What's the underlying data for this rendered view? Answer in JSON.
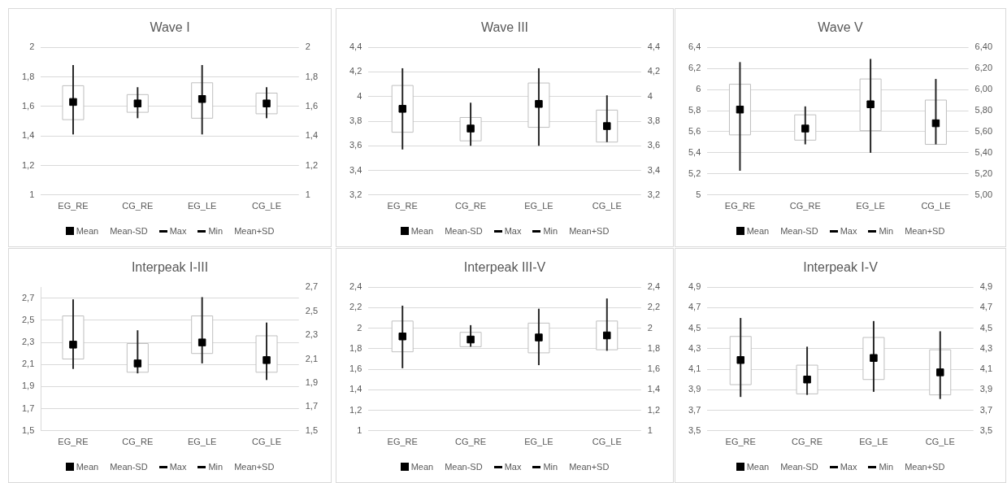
{
  "chart_data": [
    {
      "type": "candlestick",
      "title": "Wave I",
      "categories": [
        "EG_RE",
        "CG_RE",
        "EG_LE",
        "CG_LE"
      ],
      "ylim": [
        1,
        2
      ],
      "yticks": [
        1,
        {
          "value": 1.2,
          "label": "1,2"
        },
        {
          "value": 1.4,
          "label": "1,4"
        },
        {
          "value": 1.6,
          "label": "1,6"
        },
        {
          "value": 1.8,
          "label": "1,8"
        },
        2
      ],
      "y2lim": [
        1,
        2
      ],
      "y2ticks": [
        1,
        {
          "value": 1.2,
          "label": "1,2"
        },
        {
          "value": 1.4,
          "label": "1,4"
        },
        {
          "value": 1.6,
          "label": "1,6"
        },
        {
          "value": 1.8,
          "label": "1,8"
        },
        2
      ],
      "grid": "y",
      "legend": "bottom",
      "ohlc": [
        [
          1.51,
          1.88,
          1.41,
          1.74
        ],
        [
          1.56,
          1.73,
          1.52,
          1.68
        ],
        [
          1.52,
          1.88,
          1.41,
          1.76
        ],
        [
          1.55,
          1.73,
          1.52,
          1.69
        ]
      ],
      "annotations": [
        "Mean-SD",
        "Max",
        "Min",
        "Mean+SD"
      ],
      "series": [
        {
          "name": "Mean",
          "type": "scatter",
          "color": "#000000",
          "marker": "square",
          "values": [
            1.63,
            1.62,
            1.65,
            1.62
          ]
        }
      ]
    },
    {
      "type": "candlestick",
      "title": "Wave III",
      "categories": [
        "EG_RE",
        "CG_RE",
        "EG_LE",
        "CG_LE"
      ],
      "ylim": [
        3.2,
        4.4
      ],
      "yticks": [
        {
          "value": 3.2,
          "label": "3,2"
        },
        {
          "value": 3.4,
          "label": "3,4"
        },
        {
          "value": 3.6,
          "label": "3,6"
        },
        {
          "value": 3.8,
          "label": "3,8"
        },
        4,
        {
          "value": 4.2,
          "label": "4,2"
        },
        {
          "value": 4.4,
          "label": "4,4"
        }
      ],
      "y2lim": [
        3.2,
        4.4
      ],
      "y2ticks": [
        {
          "value": 3.2,
          "label": "3,2"
        },
        {
          "value": 3.4,
          "label": "3,4"
        },
        {
          "value": 3.6,
          "label": "3,6"
        },
        {
          "value": 3.8,
          "label": "3,8"
        },
        4,
        {
          "value": 4.2,
          "label": "4,2"
        },
        {
          "value": 4.4,
          "label": "4,4"
        }
      ],
      "grid": "y",
      "legend": "bottom",
      "ohlc": [
        [
          3.71,
          4.23,
          3.57,
          4.09
        ],
        [
          3.64,
          3.95,
          3.6,
          3.83
        ],
        [
          3.75,
          4.23,
          3.6,
          4.11
        ],
        [
          3.63,
          4.01,
          3.63,
          3.89
        ]
      ],
      "annotations": [
        "Mean-SD",
        "Max",
        "Min",
        "Mean+SD"
      ],
      "series": [
        {
          "name": "Mean",
          "type": "scatter",
          "color": "#000000",
          "marker": "square",
          "values": [
            3.9,
            3.74,
            3.94,
            3.76
          ]
        }
      ]
    },
    {
      "type": "candlestick",
      "title": "Wave V",
      "categories": [
        "EG_RE",
        "CG_RE",
        "EG_LE",
        "CG_LE"
      ],
      "ylim": [
        5,
        6.4
      ],
      "yticks": [
        5,
        {
          "value": 5.2,
          "label": "5,2"
        },
        {
          "value": 5.4,
          "label": "5,4"
        },
        {
          "value": 5.6,
          "label": "5,6"
        },
        {
          "value": 5.8,
          "label": "5,8"
        },
        6,
        {
          "value": 6.2,
          "label": "6,2"
        },
        {
          "value": 6.4,
          "label": "6,4"
        }
      ],
      "y2lim": [
        5,
        6.4
      ],
      "y2ticks": [
        {
          "value": 5,
          "label": "5,00"
        },
        {
          "value": 5.2,
          "label": "5,20"
        },
        {
          "value": 5.4,
          "label": "5,40"
        },
        {
          "value": 5.6,
          "label": "5,60"
        },
        {
          "value": 5.8,
          "label": "5,80"
        },
        {
          "value": 6,
          "label": "6,00"
        },
        {
          "value": 6.2,
          "label": "6,20"
        },
        {
          "value": 6.4,
          "label": "6,40"
        }
      ],
      "grid": "y",
      "legend": "bottom",
      "ohlc": [
        [
          5.57,
          6.26,
          5.23,
          6.05
        ],
        [
          5.52,
          5.84,
          5.48,
          5.76
        ],
        [
          5.61,
          6.29,
          5.4,
          6.1
        ],
        [
          5.48,
          6.1,
          5.48,
          5.9
        ]
      ],
      "annotations": [
        "Mean-SD",
        "Max",
        "Min",
        "Mean+SD"
      ],
      "series": [
        {
          "name": "Mean",
          "type": "scatter",
          "color": "#000000",
          "marker": "square",
          "values": [
            5.81,
            5.63,
            5.86,
            5.68
          ]
        }
      ]
    },
    {
      "type": "candlestick",
      "title": "Interpeak I-III",
      "categories": [
        "EG_RE",
        "CG_RE",
        "EG_LE",
        "CG_LE"
      ],
      "ylim": [
        1.5,
        2.8
      ],
      "yticks": [
        {
          "value": 1.5,
          "label": "1,5"
        },
        {
          "value": 1.7,
          "label": "1,7"
        },
        {
          "value": 1.9,
          "label": "1,9"
        },
        {
          "value": 2.1,
          "label": "2,1"
        },
        {
          "value": 2.3,
          "label": "2,3"
        },
        {
          "value": 2.5,
          "label": "2,5"
        },
        {
          "value": 2.7,
          "label": "2,7"
        }
      ],
      "y2lim": [
        1.5,
        2.7
      ],
      "y2ticks": [
        {
          "value": 1.5,
          "label": "1,5"
        },
        {
          "value": 1.7,
          "label": "1,7"
        },
        {
          "value": 1.9,
          "label": "1,9"
        },
        {
          "value": 2.1,
          "label": "2,1"
        },
        {
          "value": 2.3,
          "label": "2,3"
        },
        {
          "value": 2.5,
          "label": "2,5"
        },
        {
          "value": 2.7,
          "label": "2,7"
        }
      ],
      "grid": "y",
      "legend": "bottom",
      "ohlc": [
        [
          2.15,
          2.69,
          2.06,
          2.54
        ],
        [
          2.03,
          2.41,
          2.02,
          2.29
        ],
        [
          2.2,
          2.71,
          2.11,
          2.54
        ],
        [
          2.03,
          2.48,
          1.96,
          2.36
        ]
      ],
      "annotations": [
        "Mean-SD",
        "Max",
        "Min",
        "Mean+SD"
      ],
      "series": [
        {
          "name": "Mean",
          "type": "scatter",
          "color": "#000000",
          "marker": "square",
          "values": [
            2.28,
            2.11,
            2.3,
            2.14
          ]
        }
      ]
    },
    {
      "type": "candlestick",
      "title": "Interpeak III-V",
      "categories": [
        "EG_RE",
        "CG_RE",
        "EG_LE",
        "CG_LE"
      ],
      "ylim": [
        1,
        2.4
      ],
      "yticks": [
        1,
        {
          "value": 1.2,
          "label": "1,2"
        },
        {
          "value": 1.4,
          "label": "1,4"
        },
        {
          "value": 1.6,
          "label": "1,6"
        },
        {
          "value": 1.8,
          "label": "1,8"
        },
        2,
        {
          "value": 2.2,
          "label": "2,2"
        },
        {
          "value": 2.4,
          "label": "2,4"
        }
      ],
      "y2lim": [
        1,
        2.4
      ],
      "y2ticks": [
        1,
        {
          "value": 1.2,
          "label": "1,2"
        },
        {
          "value": 1.4,
          "label": "1,4"
        },
        {
          "value": 1.6,
          "label": "1,6"
        },
        {
          "value": 1.8,
          "label": "1,8"
        },
        2,
        {
          "value": 2.2,
          "label": "2,2"
        },
        {
          "value": 2.4,
          "label": "2,4"
        }
      ],
      "grid": "y",
      "legend": "bottom",
      "ohlc": [
        [
          1.77,
          2.22,
          1.61,
          2.07
        ],
        [
          1.82,
          2.03,
          1.82,
          1.96
        ],
        [
          1.76,
          2.19,
          1.64,
          2.05
        ],
        [
          1.79,
          2.29,
          1.78,
          2.07
        ]
      ],
      "annotations": [
        "Mean-SD",
        "Max",
        "Min",
        "Mean+SD"
      ],
      "series": [
        {
          "name": "Mean",
          "type": "scatter",
          "color": "#000000",
          "marker": "square",
          "values": [
            1.92,
            1.89,
            1.91,
            1.93
          ]
        }
      ]
    },
    {
      "type": "candlestick",
      "title": "Interpeak I-V",
      "categories": [
        "EG_RE",
        "CG_RE",
        "EG_LE",
        "CG_LE"
      ],
      "ylim": [
        3.5,
        4.9
      ],
      "yticks": [
        {
          "value": 3.5,
          "label": "3,5"
        },
        {
          "value": 3.7,
          "label": "3,7"
        },
        {
          "value": 3.9,
          "label": "3,9"
        },
        {
          "value": 4.1,
          "label": "4,1"
        },
        {
          "value": 4.3,
          "label": "4,3"
        },
        {
          "value": 4.5,
          "label": "4,5"
        },
        {
          "value": 4.7,
          "label": "4,7"
        },
        {
          "value": 4.9,
          "label": "4,9"
        }
      ],
      "y2lim": [
        3.5,
        4.9
      ],
      "y2ticks": [
        {
          "value": 3.5,
          "label": "3,5"
        },
        {
          "value": 3.7,
          "label": "3,7"
        },
        {
          "value": 3.9,
          "label": "3,9"
        },
        {
          "value": 4.1,
          "label": "4,1"
        },
        {
          "value": 4.3,
          "label": "4,3"
        },
        {
          "value": 4.5,
          "label": "4,5"
        },
        {
          "value": 4.7,
          "label": "4,7"
        },
        {
          "value": 4.9,
          "label": "4,9"
        }
      ],
      "grid": "y",
      "legend": "bottom",
      "ohlc": [
        [
          3.95,
          4.6,
          3.83,
          4.42
        ],
        [
          3.86,
          4.32,
          3.85,
          4.14
        ],
        [
          4.0,
          4.57,
          3.88,
          4.41
        ],
        [
          3.85,
          4.47,
          3.81,
          4.29
        ]
      ],
      "annotations": [
        "Mean-SD",
        "Max",
        "Min",
        "Mean+SD"
      ],
      "series": [
        {
          "name": "Mean",
          "type": "scatter",
          "color": "#000000",
          "marker": "square",
          "values": [
            4.19,
            4.0,
            4.21,
            4.07
          ]
        }
      ]
    }
  ]
}
